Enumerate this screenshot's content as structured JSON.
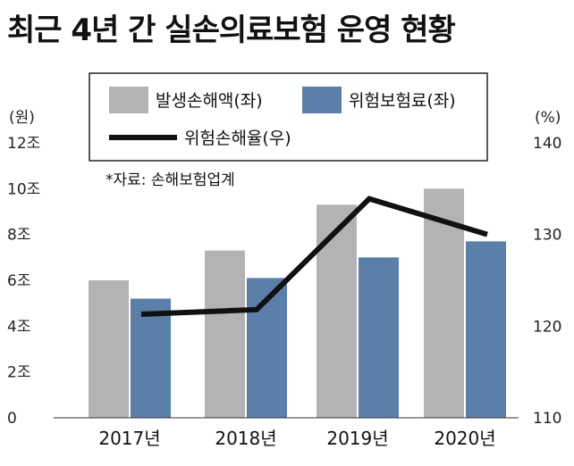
{
  "title": "최근 4년 간 실손의료보험 운영 현황",
  "source": "*자료: 손해보험업계",
  "colors": {
    "loss": "#b3b3b3",
    "premium": "#5a7fa8",
    "ratio": "#111111"
  },
  "chart_data": {
    "type": "bar",
    "categories": [
      "2017년",
      "2018년",
      "2019년",
      "2020년"
    ],
    "series": [
      {
        "name": "발생손해액(좌)",
        "type": "bar",
        "axis": "left",
        "values": [
          6.0,
          7.3,
          9.3,
          10.0
        ]
      },
      {
        "name": "위험보험료(좌)",
        "type": "bar",
        "axis": "left",
        "values": [
          5.2,
          6.1,
          7.0,
          7.7
        ]
      },
      {
        "name": "위험손해율(우)",
        "type": "line",
        "axis": "right",
        "values": [
          121.3,
          121.8,
          133.9,
          130.0
        ]
      }
    ],
    "y_left": {
      "unit": "(원)",
      "ylim": [
        0,
        12
      ],
      "ticks": [
        "0",
        "2조",
        "4조",
        "6조",
        "8조",
        "10조",
        "12조"
      ]
    },
    "y_right": {
      "unit": "(%)",
      "ylim": [
        110,
        140
      ],
      "ticks": [
        "110",
        "120",
        "130",
        "140"
      ]
    },
    "legend_position": "top-center",
    "grid": false
  }
}
